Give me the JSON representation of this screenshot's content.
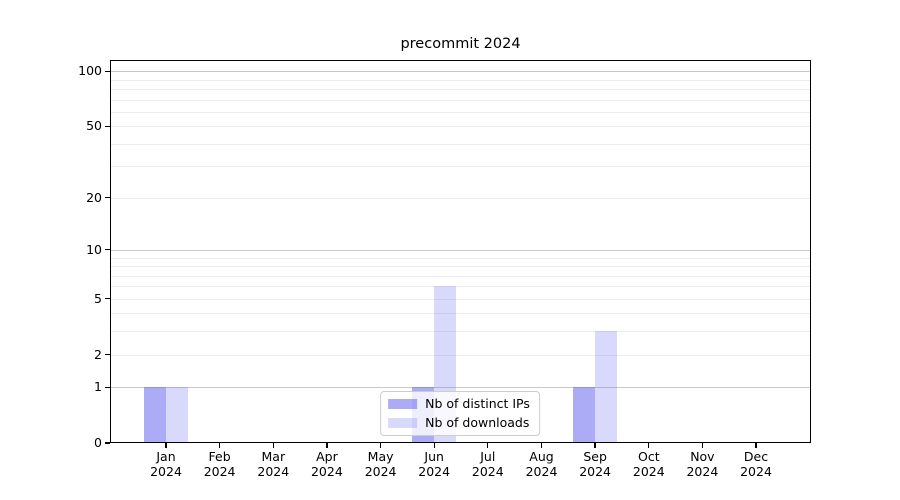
{
  "chart_data": {
    "type": "bar",
    "title": "precommit 2024",
    "categories": [
      {
        "month": "Jan",
        "year": "2024"
      },
      {
        "month": "Feb",
        "year": "2024"
      },
      {
        "month": "Mar",
        "year": "2024"
      },
      {
        "month": "Apr",
        "year": "2024"
      },
      {
        "month": "May",
        "year": "2024"
      },
      {
        "month": "Jun",
        "year": "2024"
      },
      {
        "month": "Jul",
        "year": "2024"
      },
      {
        "month": "Aug",
        "year": "2024"
      },
      {
        "month": "Sep",
        "year": "2024"
      },
      {
        "month": "Oct",
        "year": "2024"
      },
      {
        "month": "Nov",
        "year": "2024"
      },
      {
        "month": "Dec",
        "year": "2024"
      }
    ],
    "series": [
      {
        "name": "Nb of distinct IPs",
        "color": "rgba(102,102,238,0.55)",
        "values": [
          1,
          0,
          0,
          0,
          0,
          1,
          0,
          0,
          1,
          0,
          0,
          0
        ]
      },
      {
        "name": "Nb of downloads",
        "color": "rgba(102,102,238,0.25)",
        "values": [
          1,
          0,
          0,
          0,
          0,
          6,
          0,
          0,
          3,
          0,
          0,
          0
        ]
      }
    ],
    "yticks": [
      0,
      1,
      2,
      5,
      10,
      20,
      50,
      100
    ],
    "major_gridlines": [
      1,
      10,
      100
    ],
    "minor_gridlines": [
      2,
      3,
      4,
      5,
      6,
      7,
      8,
      9,
      20,
      30,
      40,
      50,
      60,
      70,
      80,
      90
    ],
    "yscale": "log1p",
    "ylim": [
      0,
      115
    ],
    "xlabel": "",
    "ylabel": "",
    "grid": true,
    "legend_position": "lower center"
  }
}
